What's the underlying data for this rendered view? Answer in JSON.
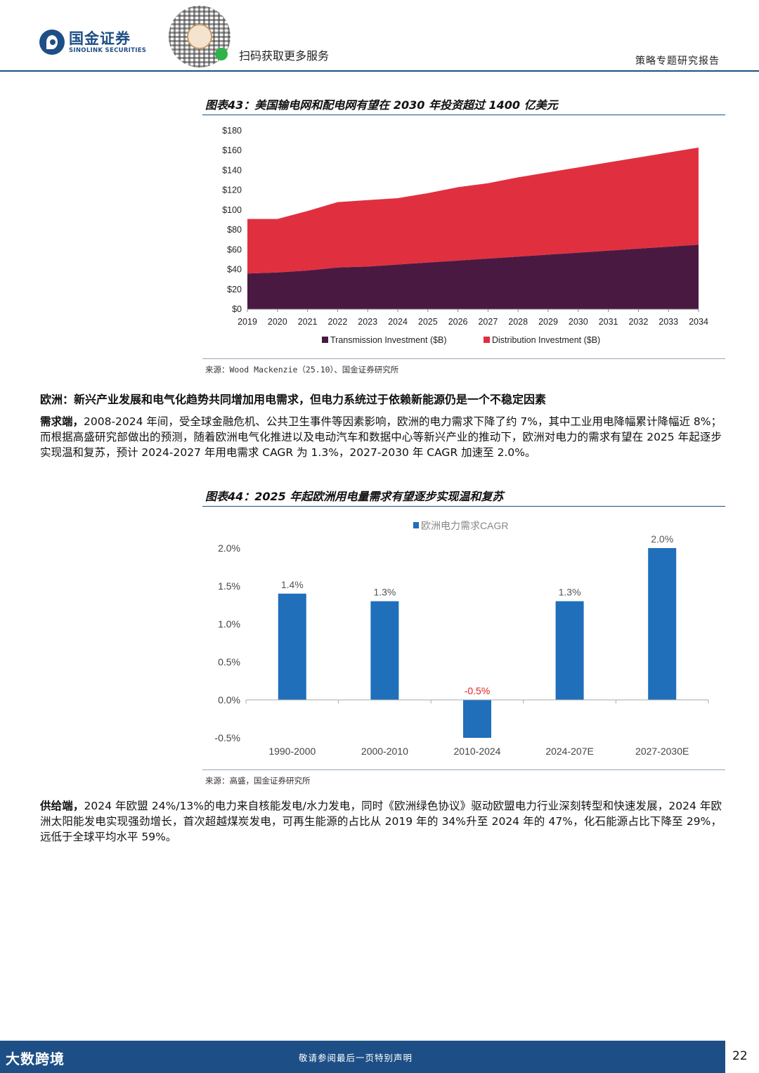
{
  "header": {
    "logo_cn": "国金证券",
    "logo_en": "SINOLINK SECURITIES",
    "scan_text": "扫码获取更多服务",
    "report_type": "策略专题研究报告"
  },
  "figure43": {
    "title": "图表43：美国输电网和配电网有望在 2030 年投资超过 1400 亿美元",
    "source": "来源：Wood Mackenzie（25.10）、国金证券研究所"
  },
  "section": {
    "head": "欧洲：新兴产业发展和电气化趋势共同增加用电需求，但电力系统过于依赖新能源仍是一个不稳定因素",
    "demand_lead": "需求端，",
    "demand_text": "2008-2024 年间，受全球金融危机、公共卫生事件等因素影响，欧洲的电力需求下降了约 7%，其中工业用电降幅累计降幅近 8%；而根据高盛研究部做出的预测，随着欧洲电气化推进以及电动汽车和数据中心等新兴产业的推动下，欧洲对电力的需求有望在 2025 年起逐步实现温和复苏，预计 2024-2027 年用电需求 CAGR 为 1.3%，2027-2030 年 CAGR 加速至 2.0%。"
  },
  "figure44": {
    "title": "图表44：2025 年起欧洲用电量需求有望逐步实现温和复苏",
    "source": "来源：高盛，国金证券研究所"
  },
  "supply": {
    "lead": "供给端，",
    "text": "2024 年欧盟 24%/13%的电力来自核能发电/水力发电，同时《欧洲绿色协议》驱动欧盟电力行业深刻转型和快速发展，2024 年欧洲太阳能发电实现强劲增长，首次超越煤炭发电，可再生能源的占比从 2019 年的 34%升至 2024 年的 47%，化石能源占比下降至 29%，远低于全球平均水平 59%。"
  },
  "footer": {
    "brand": "大数跨境",
    "note": "敬请参阅最后一页特别声明",
    "page": "22"
  },
  "chart_data": [
    {
      "type": "area",
      "stacked": true,
      "x": [
        "2019",
        "2020",
        "2021",
        "2022",
        "2023",
        "2024",
        "2025",
        "2026",
        "2027",
        "2028",
        "2029",
        "2030",
        "2031",
        "2032",
        "2033",
        "2034"
      ],
      "series": [
        {
          "name": "Transmission Investment ($B)",
          "color": "#4a1942",
          "values": [
            36,
            37,
            39,
            42,
            43,
            45,
            47,
            49,
            51,
            53,
            55,
            57,
            59,
            61,
            63,
            65
          ]
        },
        {
          "name": "Distribution Investment ($B)",
          "color": "#e0303f",
          "values": [
            55,
            54,
            60,
            66,
            67,
            67,
            70,
            74,
            76,
            80,
            83,
            86,
            89,
            92,
            95,
            98
          ]
        }
      ],
      "ylim": [
        0,
        180
      ],
      "yticks": [
        "$0",
        "$20",
        "$40",
        "$60",
        "$80",
        "$100",
        "$120",
        "$140",
        "$160",
        "$180"
      ],
      "legend": "bottom"
    },
    {
      "type": "bar",
      "categories": [
        "1990-2000",
        "2000-2010",
        "2010-2024",
        "2024-207E",
        "2027-2030E"
      ],
      "series": [
        {
          "name": "欧洲电力需求CAGR",
          "color": "#1f6fba",
          "values": [
            1.4,
            1.3,
            -0.5,
            1.3,
            2.0
          ],
          "labels": [
            "1.4%",
            "1.3%",
            "-0.5%",
            "1.3%",
            "2.0%"
          ]
        }
      ],
      "negative_label_color": "#e02020",
      "ylim": [
        -0.5,
        2.0
      ],
      "yticks": [
        "-0.5%",
        "0.0%",
        "0.5%",
        "1.0%",
        "1.5%",
        "2.0%"
      ],
      "legend": "top"
    }
  ]
}
